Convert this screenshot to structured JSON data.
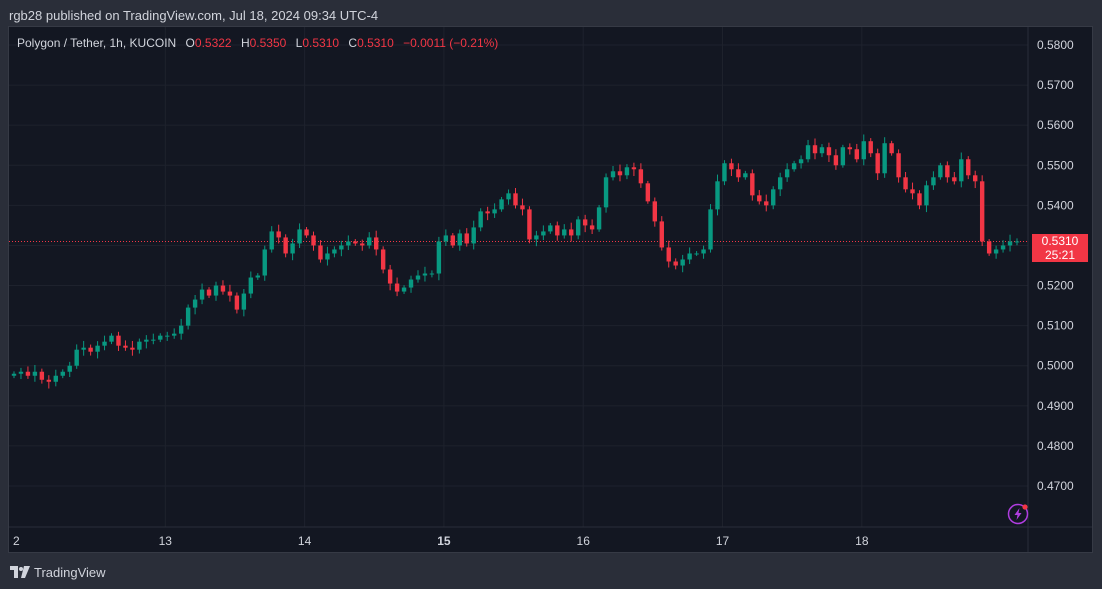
{
  "header": {
    "published": "rgb28 published on TradingView.com, Jul 18, 2024 09:34 UTC-4"
  },
  "legend": {
    "symbol": "Polygon / Tether, 1h, KUCOIN",
    "o_label": "O",
    "o_value": "0.5322",
    "h_label": "H",
    "h_value": "0.5350",
    "l_label": "L",
    "l_value": "0.5310",
    "c_label": "C",
    "c_value": "0.5310",
    "change": "−0.0011 (−0.21%)"
  },
  "price_tag": {
    "price": "0.5310",
    "countdown": "25:21"
  },
  "footer": {
    "brand": "TradingView"
  },
  "colors": {
    "up": "#089981",
    "down": "#f23645",
    "background": "#131722",
    "grid": "#1e222d",
    "text": "#d1d4dc",
    "bolt": "#b03de0"
  },
  "icons": {
    "logo": "tradingview-logo-icon",
    "bolt": "lightning-icon"
  },
  "chart_data": {
    "type": "candlestick",
    "timeframe": "1h",
    "ylim": [
      0.462,
      0.584
    ],
    "y_ticks": [
      "0.5800",
      "0.5700",
      "0.5600",
      "0.5500",
      "0.5400",
      "0.5300",
      "0.5200",
      "0.5100",
      "0.5000",
      "0.4900",
      "0.4800",
      "0.4700"
    ],
    "y_tick_values": [
      0.58,
      0.57,
      0.56,
      0.55,
      0.54,
      0.53,
      0.52,
      0.51,
      0.5,
      0.49,
      0.48,
      0.47
    ],
    "x_ticks": [
      {
        "label": "2",
        "bold": false
      },
      {
        "label": "13",
        "bold": false
      },
      {
        "label": "14",
        "bold": false
      },
      {
        "label": "15",
        "bold": true
      },
      {
        "label": "16",
        "bold": false
      },
      {
        "label": "17",
        "bold": false
      },
      {
        "label": "18",
        "bold": false
      }
    ],
    "x_tick_bar_index": [
      0,
      20,
      40,
      60,
      80,
      100,
      120
    ],
    "last_price": 0.531,
    "closes": [
      0.498,
      0.4985,
      0.4975,
      0.4985,
      0.4965,
      0.496,
      0.4975,
      0.4985,
      0.5,
      0.504,
      0.5045,
      0.5035,
      0.505,
      0.506,
      0.5075,
      0.505,
      0.5045,
      0.504,
      0.506,
      0.5065,
      0.5065,
      0.5075,
      0.5075,
      0.508,
      0.51,
      0.5145,
      0.5165,
      0.519,
      0.5175,
      0.52,
      0.5185,
      0.5175,
      0.514,
      0.518,
      0.522,
      0.5225,
      0.529,
      0.5335,
      0.532,
      0.528,
      0.5305,
      0.534,
      0.5325,
      0.53,
      0.5265,
      0.528,
      0.529,
      0.53,
      0.531,
      0.5305,
      0.53,
      0.532,
      0.529,
      0.524,
      0.5205,
      0.5185,
      0.5195,
      0.5215,
      0.5225,
      0.523,
      0.523,
      0.531,
      0.5325,
      0.53,
      0.533,
      0.5305,
      0.5345,
      0.5385,
      0.538,
      0.539,
      0.5415,
      0.543,
      0.54,
      0.539,
      0.5315,
      0.5325,
      0.5335,
      0.535,
      0.5325,
      0.534,
      0.5325,
      0.5365,
      0.535,
      0.534,
      0.5395,
      0.547,
      0.5485,
      0.5475,
      0.5495,
      0.549,
      0.5455,
      0.541,
      0.536,
      0.5295,
      0.526,
      0.525,
      0.5265,
      0.528,
      0.528,
      0.529,
      0.539,
      0.546,
      0.5505,
      0.549,
      0.547,
      0.548,
      0.5425,
      0.541,
      0.54,
      0.544,
      0.547,
      0.549,
      0.5505,
      0.5515,
      0.555,
      0.553,
      0.5545,
      0.5525,
      0.55,
      0.5545,
      0.554,
      0.5515,
      0.556,
      0.553,
      0.548,
      0.5555,
      0.553,
      0.547,
      0.544,
      0.543,
      0.54,
      0.545,
      0.547,
      0.55,
      0.547,
      0.546,
      0.5515,
      0.5475,
      0.546,
      0.531,
      0.528,
      0.529,
      0.53,
      0.531,
      0.531
    ],
    "opens_first": 0.4975
  }
}
